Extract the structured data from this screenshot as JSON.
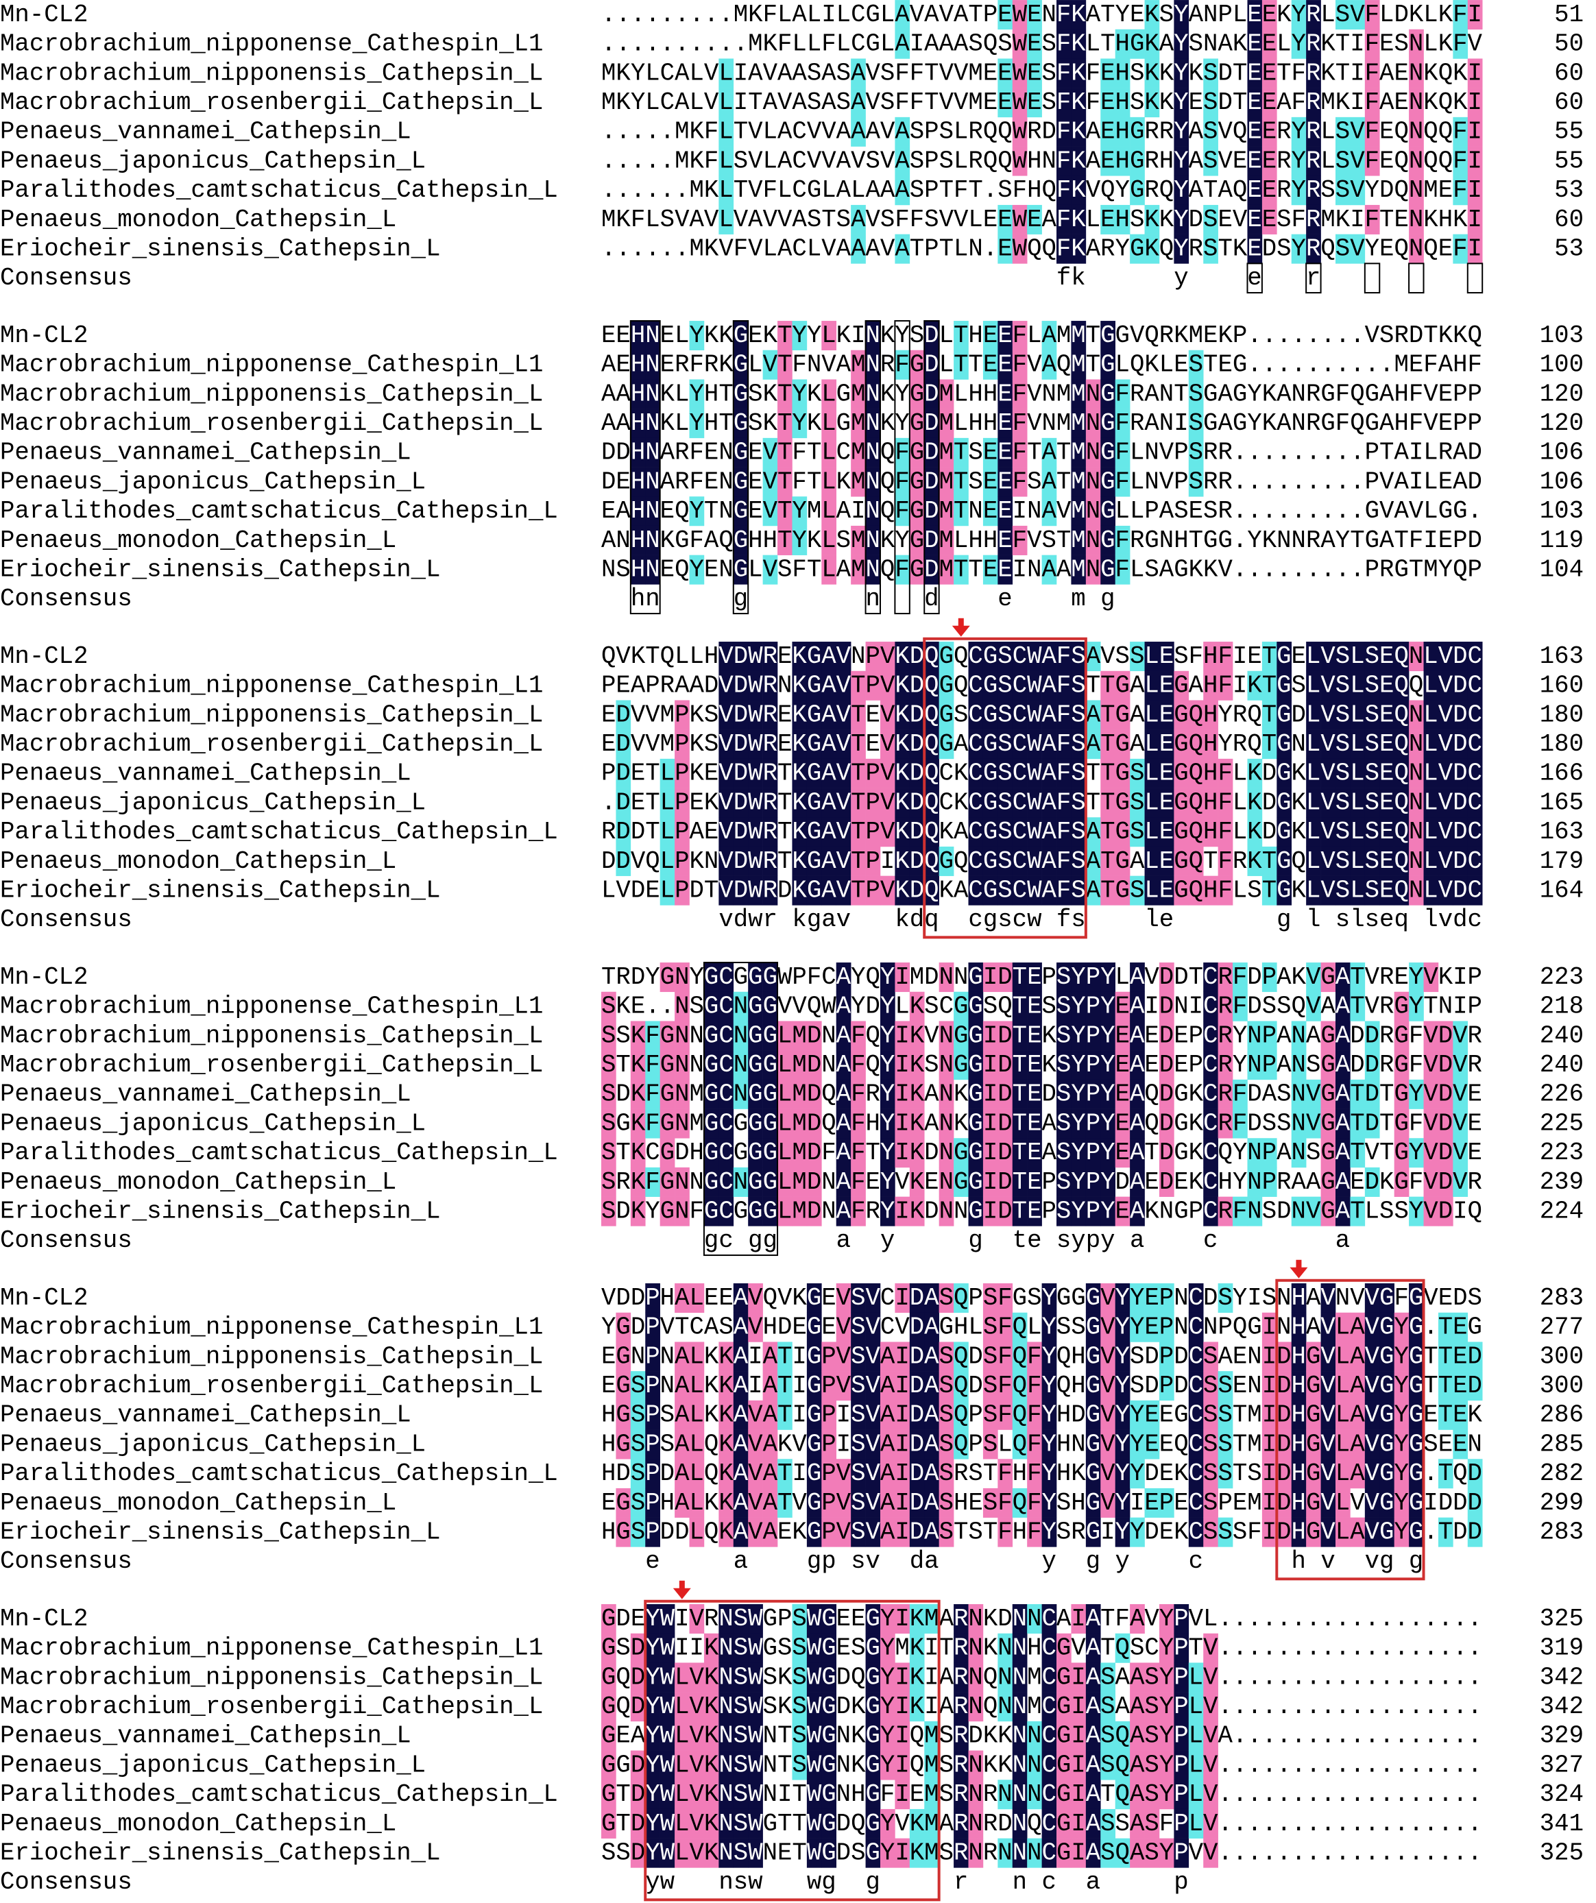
{
  "sequence_names": [
    "Mn-CL2",
    "Macrobrachium_nipponense_Cathespin_L1",
    "Macrobrachium_nipponensis_Cathepsin_L",
    "Macrobrachium_rosenbergii_Cathepsin_L",
    "Penaeus_vannamei_Cathepsin_L",
    "Penaeus_japonicus_Cathepsin_L",
    "Paralithodes_camtschaticus_Cathepsin_L",
    "Penaeus_monodon_Cathepsin_L",
    "Eriocheir_sinensis_Cathepsin_L"
  ],
  "consensus_label": "Consensus",
  "blocks": [
    {
      "rows": [
        {
          "seq": ".........MKFLALILCGLAVAVATPEWENFKATYEKSYANPLEEKYRLSVFLDKLKFI",
          "end": 51
        },
        {
          "seq": "..........MKFLLFLCGLAIAAASQSWESFKLTHGKAYSNAKEELYRKTIFESNLKFV",
          "end": 50
        },
        {
          "seq": "MKYLCALVLIAVAASASAVSFFTVVMEEWESFKFEHSKKYKSDTEETFRKTIFAENKQKI",
          "end": 60
        },
        {
          "seq": "MKYLCALVLITAVASASAVSFFTVVMEEWESFKFEHSKKYESDTEEAFRMKIFAENKQKI",
          "end": 60
        },
        {
          "seq": ".....MKFLTVLACVVAAAVASPSLRQQWRDFKAEHGRRYASVQEERYRLSVFEQNQQFI",
          "end": 55
        },
        {
          "seq": ".....MKFLSVLACVVAVSVASPSLRQQWHNFKAEHGRHYASVEEERYRLSVFEQNQQFI",
          "end": 55
        },
        {
          "seq": "......MKLTVFLCGLALAAASPTFT.SFHQFKVQYGRQYATAQEERYRSSVYDQNMEFI",
          "end": 53
        },
        {
          "seq": "MKFLSVAVLVAVVASTSAVSFFSVVLEEWEAFKLEHSKKYDSEVEESFRMKIFTENKHKI",
          "end": 60
        },
        {
          "seq": "......MKVFVLACLVAAAVATPTLN.EWQQFKARYGKQYRSTKEDSYRQSVYEQNQEFI",
          "end": 53
        }
      ],
      "consensus": "                               fk      y    e   r"
    },
    {
      "rows": [
        {
          "seq": "EEHNELYKKGEKTYYLKINKYSDLTHEEFLAMMTGGVQRKMEKP........VSRDTKKQ",
          "end": 103
        },
        {
          "seq": "AEHNERFRKGLVTFNVAMNRFGDLTTEEFVAQMTGLQKLESTEG..........MEFAHF",
          "end": 100
        },
        {
          "seq": "AAHNKLYHTGSKTYKLGMNKYGDMLHHEFVNMMNGFRANTSGAGYKANRGFQGAHFVEPP",
          "end": 120
        },
        {
          "seq": "AAHNKLYHTGSKTYKLGMNKYGDMLHHEFVNMMNGFRANISGAGYKANRGFQGAHFVEPP",
          "end": 120
        },
        {
          "seq": "DDHNARFENGEVTFTLCMNQFGDMTSEEFTATMNGFLNVPSRR.........PTAILRAD",
          "end": 106
        },
        {
          "seq": "DEHNARFENGEVTFTLKMNQFGDMTSEEFSATMNGFLNVPSRR.........PVAILEAD",
          "end": 106
        },
        {
          "seq": "EAHNEQYTNGEVTYMLAINQFGDMTNEEINAVMNGLLPASESR.........GVAVLGG.",
          "end": 103
        },
        {
          "seq": "ANHNKGFAQGHHTYKLSMNKYGDMLHHEFVSTMNGFRGNHTGG.YKNNRAYTGATFIEPD",
          "end": 119
        },
        {
          "seq": "NSHNEQYENGLVSFTLAMNQFGDMTTEEINAAMNGFLSAGKKV.........PRGTMYQP",
          "end": 104
        }
      ],
      "consensus": "  hn     g        n   d    e    m g"
    },
    {
      "rows": [
        {
          "seq": "QVKTQLLHVDWREKGAVNPVKDQGQCGSCWAFSAVSSLESFHFIETGELVSLSEQNLVDC",
          "end": 163
        },
        {
          "seq": "PEAPRAADVDWRNKGAVTPVKDQGQCGSCWAFSTTGALEGAHFIKTGSLVSLSEQQLVDC",
          "end": 160
        },
        {
          "seq": "EDVVMPKSVDWREKGAVTEVKDQGSCGSCWAFSATGALEGQHYRQTGDLVSLSEQNLVDC",
          "end": 180
        },
        {
          "seq": "EDVVMPKSVDWREKGAVTEVKDQGACGSCWAFSATGALEGQHYRQTGNLVSLSEQNLVDC",
          "end": 180
        },
        {
          "seq": "PDETLPKEVDWRTKGAVTPVKDQCKCGSCWAFSTTGSLEGQHFLKDGKLVSLSEQNLVDC",
          "end": 166
        },
        {
          "seq": ".DETLPEKVDWRTKGAVTPVKDQCKCGSCWAFSTTGSLEGQHFLKDGKLVSLSEQNLVDC",
          "end": 165
        },
        {
          "seq": "RDDTLPAEVDWRTKGAVTPVKDQKACGSCWAFSATGSLEGQHFLKDGKLVSLSEQNLVDC",
          "end": 163
        },
        {
          "seq": "DDVQLPKNVDWRTKGAVTPIKDQGQCGSCWAFSATGALEGQTFRKTGQLVSLSEQNLVDC",
          "end": 179
        },
        {
          "seq": "LVDELPDTVDWRDKGAVTPVKDQKACGSCWAFSATGSLEGQHFLSTGKLVSLSEQNLVDC",
          "end": 164
        }
      ],
      "consensus": "        vdwr kgav   kdq  cgscw fs    le       g l slseq lvdc"
    },
    {
      "rows": [
        {
          "seq": "TRDYGNYGCGGGWPFCAYQYIMDNNGIDTEPSYPYLAVDDTCRFDPAKVGATVREYVKIP",
          "end": 223
        },
        {
          "seq": "SKE..NSGCNGGVVQWAYDYLKSCGGSQTESSYPYEAIDNICRFDSSQVAATVRGYTNIP",
          "end": 218
        },
        {
          "seq": "SSKFGNNGCNGGLMDNAFQYIKVNGGIDTEKSYPYEAEDEPCRYNPANAGADDRGFVDVR",
          "end": 240
        },
        {
          "seq": "STKFGNNGCNGGLMDNAFQYIKSNGGIDTEKSYPYEAEDEPCRYNPANSGADDRGFVDVR",
          "end": 240
        },
        {
          "seq": "SDKFGNMGCNGGLMDQAFRYIKANKGIDTEDSYPYEAQDGKCRFDASNVGATDTGYVDVE",
          "end": 226
        },
        {
          "seq": "SGKFGNMGCGGGLMDQAFHYIKANKGIDTEASYPYEAQDGKCRFDSSNVGATDTGFVDVE",
          "end": 225
        },
        {
          "seq": "STKCGDHGCGGGLMDFAFTYIKDNGGIDTEASYPYEATDGKCQYNPANSGATVTGYVDVE",
          "end": 223
        },
        {
          "seq": "SRKFGNNGCNGGLMDNAFEYVKENGGIDTEPSYPYDAEDEKCHYNPRAAGAEDKGFVDVR",
          "end": 239
        },
        {
          "seq": "SDKYGNFGCGGGLMDNAFRYIKDNNGIDTEPSYPYEAKNGPCRFNSDNVGATLSSYVDIQ",
          "end": 224
        }
      ],
      "consensus": "       gc gg    a  y     g  te sypy a    c        a"
    },
    {
      "rows": [
        {
          "seq": "VDDPHALEEAVQVKGEVSVCIDASQPSFGSYGGGVYYEPNCDSYISNHAVNVVGFGVEDS",
          "end": 283
        },
        {
          "seq": "YGDPVTCASAVHDEGEVSVCVDAGHLSFQLYSSGVYYEPNCNPQGINHAVLAVGYG.TEG",
          "end": 277
        },
        {
          "seq": "EGNPNALKKAIATIGPVSVAIDASQDSFQFYQHGVYSDPDCSAENIDHGVLAVGYGTTED",
          "end": 300
        },
        {
          "seq": "EGSPNALKKAIATIGPVSVAIDASQDSFQFYQHGVYSDPDCSSENIDHGVLAVGYGTTED",
          "end": 300
        },
        {
          "seq": "HGSPSALKKAVATIGPISVAIDASQPSFQFYHDGVYYEEGCSSTMIDHGVLAVGYGETEK",
          "end": 286
        },
        {
          "seq": "HGSPSALQKAVAKVGPISVAIDASQPSLQFYHNGVYYEEQCSSTMIDHGVLAVGYGSEEN",
          "end": 285
        },
        {
          "seq": "HDSPDALQKAVATIGPVSVAIDASRSTFHFYHKGVYYDEKCSSTSIDHGVLAVGYG.TQD",
          "end": 282
        },
        {
          "seq": "EGSPHALKKAVATVGPVSVAIDASHESFQFYSHGVYIEPECSPEMIDHGVLVVGYGIDDD",
          "end": 299
        },
        {
          "seq": "HGSPDDLQKAVAEKGPVSVAIDASTSTFHFYSRGIYYDEKCSSSFIDHGVLAVGYG.TDD",
          "end": 283
        }
      ],
      "consensus": "   e     a    gp sv  da       y  g y    c      h v  vg g"
    },
    {
      "rows": [
        {
          "seq": "GDEYWIVRNSWGPSWGEEGYIKMARNKDNNCAIATFAVYPVL..................",
          "end": 325
        },
        {
          "seq": "GSDYWIIKNSWGSSWGESGYMKITRNKNNHCGVATQSCYPTV..................",
          "end": 319
        },
        {
          "seq": "GQDYWLVKNSWSKSWGDQGYIKIARNQNNMCGIASAASYPLV..................",
          "end": 342
        },
        {
          "seq": "GQDYWLVKNSWSKSWGDKGYIKIARNQNNMCGIASAASYPLV..................",
          "end": 342
        },
        {
          "seq": "GEAYWLVKNSWNTSWGNKGYIQMSRDKKNNCGIASQASYPLVA.................",
          "end": 329
        },
        {
          "seq": "GGDYWLVKNSWNTSWGNKGYIQMSRNKKNNCGIASQASYPLV..................",
          "end": 327
        },
        {
          "seq": "GTDYWLVKNSWNITWGNHGFIEMSRNRNNNCGIATQASYPLV..................",
          "end": 324
        },
        {
          "seq": "GTDYWLVKNSWGTTWGDQGYVKMARNRDNQCGIASSASFPLV..................",
          "end": 341
        },
        {
          "seq": "SSDYWLVKNSWNETWGDSGYIKMSRNRNNNCGIASQASYPVV..................",
          "end": 325
        }
      ],
      "consensus": "   yw   nsw   wg  g     r   n c  a     p"
    }
  ]
}
